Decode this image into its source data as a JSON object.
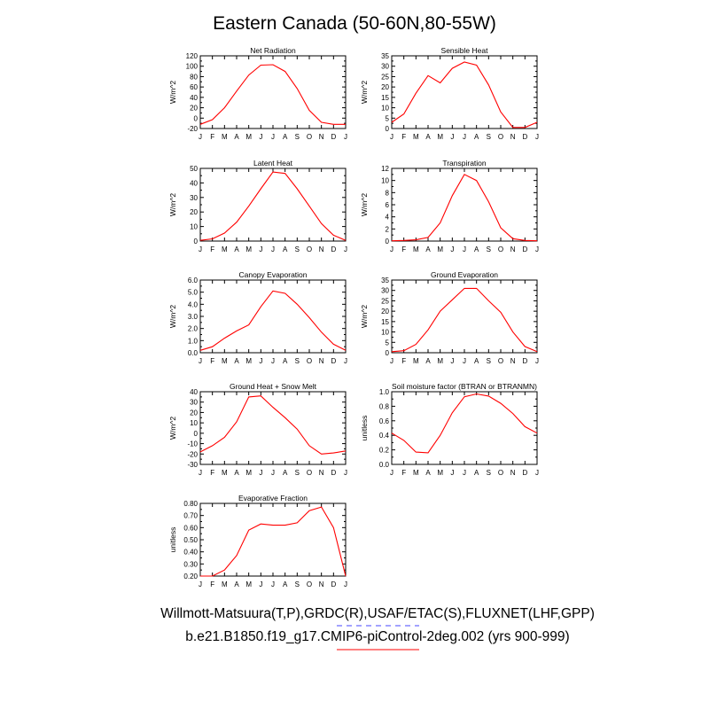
{
  "title": "Eastern Canada (50-60N,80-55W)",
  "legend": {
    "obs_label": "Willmott-Matsuura(T,P),GRDC(R),USAF/ETAC(S),FLUXNET(LHF,GPP)",
    "model_label": "b.e21.B1850.f19_g17.CMIP6-piControl-2deg.002 (yrs 900-999)",
    "obs_color": "#4444ff",
    "model_color": "#ff0000"
  },
  "chart_data": [
    {
      "type": "line",
      "title": "Net Radiation",
      "ylabel": "W/m^2",
      "x": [
        "J",
        "F",
        "M",
        "A",
        "M",
        "J",
        "J",
        "A",
        "S",
        "O",
        "N",
        "D",
        "J"
      ],
      "ylim": [
        -20,
        120
      ],
      "yticks": [
        -20,
        0,
        20,
        40,
        60,
        80,
        100,
        120
      ],
      "ytick_labels": [
        "-20",
        "0",
        "20",
        "40",
        "60",
        "80",
        "100",
        "120"
      ],
      "series": [
        {
          "values": [
            -12,
            -3,
            20,
            52,
            83,
            102,
            103,
            90,
            57,
            15,
            -8,
            -12,
            -12
          ],
          "color": "#ff0000"
        }
      ]
    },
    {
      "type": "line",
      "title": "Sensible Heat",
      "ylabel": "W/m^2",
      "x": [
        "J",
        "F",
        "M",
        "A",
        "M",
        "J",
        "J",
        "A",
        "S",
        "O",
        "N",
        "D",
        "J"
      ],
      "ylim": [
        0,
        35
      ],
      "yticks": [
        0,
        5,
        10,
        15,
        20,
        25,
        30,
        35
      ],
      "ytick_labels": [
        "0",
        "5",
        "10",
        "15",
        "20",
        "25",
        "30",
        "35"
      ],
      "series": [
        {
          "values": [
            3,
            7,
            17,
            25.5,
            22,
            29,
            32,
            30.5,
            21,
            8,
            0.5,
            0.5,
            3
          ],
          "color": "#ff0000"
        }
      ]
    },
    {
      "type": "line",
      "title": "Latent Heat",
      "ylabel": "W/m^2",
      "x": [
        "J",
        "F",
        "M",
        "A",
        "M",
        "J",
        "J",
        "A",
        "S",
        "O",
        "N",
        "D",
        "J"
      ],
      "ylim": [
        0,
        50
      ],
      "yticks": [
        0,
        10,
        20,
        30,
        40,
        50
      ],
      "ytick_labels": [
        "0",
        "10",
        "20",
        "30",
        "40",
        "50"
      ],
      "series": [
        {
          "values": [
            0.5,
            1.5,
            5.5,
            13,
            24,
            36,
            47.5,
            46.5,
            36,
            24,
            12,
            4,
            0.5
          ],
          "color": "#ff0000"
        }
      ]
    },
    {
      "type": "line",
      "title": "Transpiration",
      "ylabel": "W/m^2",
      "x": [
        "J",
        "F",
        "M",
        "A",
        "M",
        "J",
        "J",
        "A",
        "S",
        "O",
        "N",
        "D",
        "J"
      ],
      "ylim": [
        0,
        12
      ],
      "yticks": [
        0,
        2,
        4,
        6,
        8,
        10,
        12
      ],
      "ytick_labels": [
        "0",
        "2",
        "4",
        "6",
        "8",
        "10",
        "12"
      ],
      "series": [
        {
          "values": [
            0.05,
            0.1,
            0.2,
            0.6,
            3,
            7.5,
            11,
            10,
            6.5,
            2.2,
            0.4,
            0.1,
            0.05
          ],
          "color": "#ff0000"
        }
      ]
    },
    {
      "type": "line",
      "title": "Canopy Evaporation",
      "ylabel": "W/m^2",
      "x": [
        "J",
        "F",
        "M",
        "A",
        "M",
        "J",
        "J",
        "A",
        "S",
        "O",
        "N",
        "D",
        "J"
      ],
      "ylim": [
        0,
        6
      ],
      "yticks": [
        0,
        1,
        2,
        3,
        4,
        5,
        6
      ],
      "ytick_labels": [
        "0.0",
        "1.0",
        "2.0",
        "3.0",
        "4.0",
        "5.0",
        "6.0"
      ],
      "series": [
        {
          "values": [
            0.2,
            0.5,
            1.2,
            1.8,
            2.3,
            3.8,
            5.1,
            4.9,
            4.0,
            2.9,
            1.7,
            0.7,
            0.2
          ],
          "color": "#ff0000"
        }
      ]
    },
    {
      "type": "line",
      "title": "Ground Evaporation",
      "ylabel": "W/m^2",
      "x": [
        "J",
        "F",
        "M",
        "A",
        "M",
        "J",
        "J",
        "A",
        "S",
        "O",
        "N",
        "D",
        "J"
      ],
      "ylim": [
        0,
        35
      ],
      "yticks": [
        0,
        5,
        10,
        15,
        20,
        25,
        30,
        35
      ],
      "ytick_labels": [
        "0",
        "5",
        "10",
        "15",
        "20",
        "25",
        "30",
        "35"
      ],
      "series": [
        {
          "values": [
            0.5,
            1,
            4,
            11,
            20,
            25.5,
            31,
            31,
            25,
            19.5,
            10,
            3,
            0.5
          ],
          "color": "#ff0000"
        }
      ]
    },
    {
      "type": "line",
      "title": "Ground Heat + Snow Melt",
      "ylabel": "W/m^2",
      "x": [
        "J",
        "F",
        "M",
        "A",
        "M",
        "J",
        "J",
        "A",
        "S",
        "O",
        "N",
        "D",
        "J"
      ],
      "ylim": [
        -30,
        40
      ],
      "yticks": [
        -30,
        -20,
        -10,
        0,
        10,
        20,
        30,
        40
      ],
      "ytick_labels": [
        "-30",
        "-20",
        "-10",
        "0",
        "10",
        "20",
        "30",
        "40"
      ],
      "series": [
        {
          "values": [
            -18,
            -12,
            -4,
            11,
            35,
            36,
            25,
            15,
            4,
            -12,
            -20,
            -19,
            -17
          ],
          "color": "#ff0000"
        }
      ]
    },
    {
      "type": "line",
      "title": "Soil moisture factor (BTRAN or BTRANMN)",
      "ylabel": "unitless",
      "x": [
        "J",
        "F",
        "M",
        "A",
        "M",
        "J",
        "J",
        "A",
        "S",
        "O",
        "N",
        "D",
        "J"
      ],
      "ylim": [
        0,
        1
      ],
      "yticks": [
        0,
        0.2,
        0.4,
        0.6,
        0.8,
        1.0
      ],
      "ytick_labels": [
        "0.0",
        "0.2",
        "0.4",
        "0.6",
        "0.8",
        "1.0"
      ],
      "series": [
        {
          "values": [
            0.43,
            0.33,
            0.17,
            0.16,
            0.4,
            0.71,
            0.93,
            0.97,
            0.94,
            0.84,
            0.7,
            0.52,
            0.43
          ],
          "color": "#ff0000"
        }
      ]
    },
    {
      "type": "line",
      "title": "Evaporative Fraction",
      "ylabel": "unitless",
      "x": [
        "J",
        "F",
        "M",
        "A",
        "M",
        "J",
        "J",
        "A",
        "S",
        "O",
        "N",
        "D",
        "J"
      ],
      "ylim": [
        0.2,
        0.8
      ],
      "yticks": [
        0.2,
        0.3,
        0.4,
        0.5,
        0.6,
        0.7,
        0.8
      ],
      "ytick_labels": [
        "0.20",
        "0.30",
        "0.40",
        "0.50",
        "0.60",
        "0.70",
        "0.80"
      ],
      "series": [
        {
          "values": [
            0.2,
            0.2,
            0.25,
            0.37,
            0.58,
            0.63,
            0.62,
            0.62,
            0.64,
            0.74,
            0.77,
            0.6,
            0.2
          ],
          "color": "#ff0000"
        }
      ]
    }
  ]
}
